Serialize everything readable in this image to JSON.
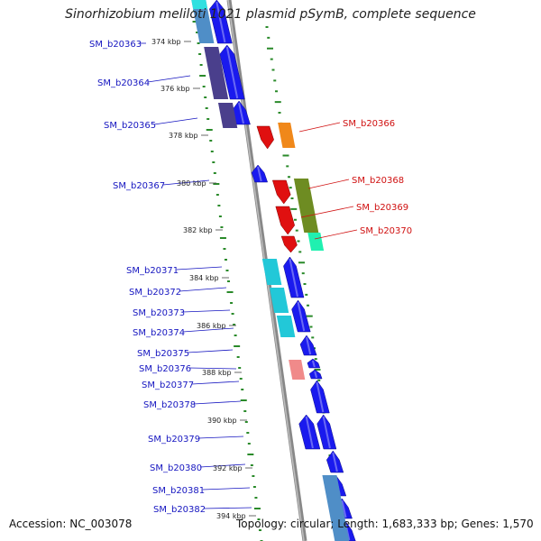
{
  "title": "Sinorhizobium meliloti 1021 plasmid pSymB, complete sequence",
  "footer": {
    "accession": "Accession: NC_003078",
    "topology": "Topology: circular; Length: 1,683,333 bp; Genes: 1,570"
  },
  "colors": {
    "forward_gene": "#1a1aee",
    "reverse_gene": "#e01010",
    "backbone": "#888888",
    "gc_track": "#2a8a2a",
    "left_label": "#1515c0",
    "right_label": "#d01010"
  },
  "ticks": [
    "374 kbp",
    "376 kbp",
    "378 kbp",
    "380 kbp",
    "382 kbp",
    "384 kbp",
    "386 kbp",
    "388 kbp",
    "390 kbp",
    "392 kbp",
    "394 kbp"
  ],
  "genes_left": [
    "SM_b20363",
    "SM_b20364",
    "SM_b20365",
    "SM_b20367",
    "SM_b20371",
    "SM_b20372",
    "SM_b20373",
    "SM_b20374",
    "SM_b20375",
    "SM_b20376",
    "SM_b20377",
    "SM_b20378",
    "SM_b20379",
    "SM_b20380",
    "SM_b20381",
    "SM_b20382"
  ],
  "genes_right": [
    "SM_b20366",
    "SM_b20368",
    "SM_b20369",
    "SM_b20370"
  ]
}
